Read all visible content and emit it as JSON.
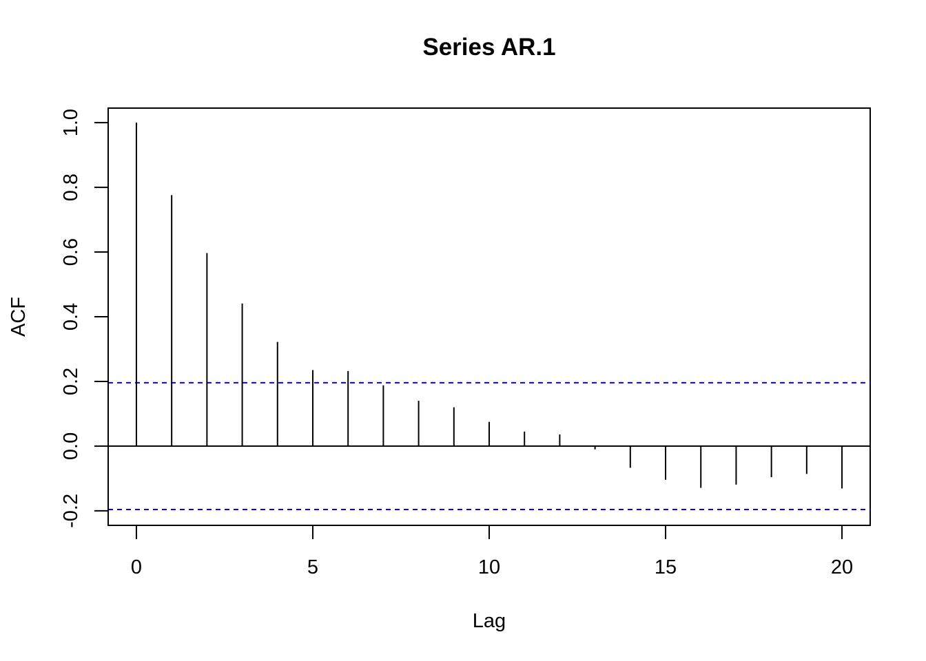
{
  "chart_data": {
    "type": "bar",
    "title": "Series  AR.1",
    "xlabel": "Lag",
    "ylabel": "ACF",
    "x": [
      0,
      1,
      2,
      3,
      4,
      5,
      6,
      7,
      8,
      9,
      10,
      11,
      12,
      13,
      14,
      15,
      16,
      17,
      18,
      19,
      20
    ],
    "values": [
      1.0,
      0.776,
      0.597,
      0.441,
      0.322,
      0.235,
      0.232,
      0.188,
      0.14,
      0.12,
      0.075,
      0.045,
      0.036,
      -0.01,
      -0.067,
      -0.104,
      -0.129,
      -0.119,
      -0.096,
      -0.086,
      -0.131
    ],
    "xlim": [
      -0.8,
      20.8
    ],
    "ylim": [
      -0.245,
      1.045
    ],
    "xticks": [
      0,
      5,
      10,
      15,
      20
    ],
    "yticks": [
      -0.2,
      0.0,
      0.2,
      0.4,
      0.6,
      0.8,
      1.0
    ],
    "ytick_labels": [
      "-0.2",
      "0.0",
      "0.2",
      "0.4",
      "0.6",
      "0.8",
      "1.0"
    ],
    "xtick_labels": [
      "0",
      "5",
      "10",
      "15",
      "20"
    ],
    "confidence_bounds": [
      0.196,
      -0.196
    ],
    "zero_line": 0,
    "bound_color": "#0000ff",
    "bar_color": "#000000",
    "grid": false,
    "legend": "none"
  }
}
